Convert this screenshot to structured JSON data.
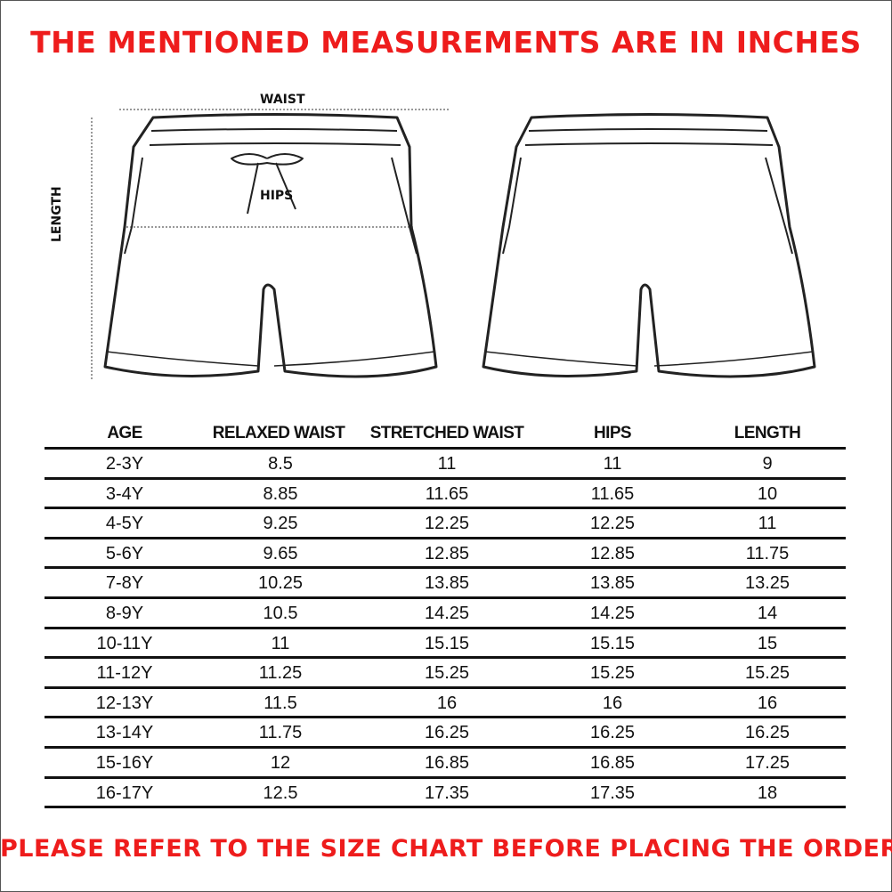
{
  "header": {
    "title": "THE MENTIONED MEASUREMENTS ARE IN INCHES"
  },
  "diagram": {
    "labels": {
      "waist": "WAIST",
      "hips": "HIPS",
      "length": "LENGTH"
    }
  },
  "table": {
    "columns": [
      "AGE",
      "RELAXED WAIST",
      "STRETCHED WAIST",
      "HIPS",
      "LENGTH"
    ],
    "rows": [
      [
        "2-3Y",
        "8.5",
        "11",
        "11",
        "9"
      ],
      [
        "3-4Y",
        "8.85",
        "11.65",
        "11.65",
        "10"
      ],
      [
        "4-5Y",
        "9.25",
        "12.25",
        "12.25",
        "11"
      ],
      [
        "5-6Y",
        "9.65",
        "12.85",
        "12.85",
        "11.75"
      ],
      [
        "7-8Y",
        "10.25",
        "13.85",
        "13.85",
        "13.25"
      ],
      [
        "8-9Y",
        "10.5",
        "14.25",
        "14.25",
        "14"
      ],
      [
        "10-11Y",
        "11",
        "15.15",
        "15.15",
        "15"
      ],
      [
        "11-12Y",
        "11.25",
        "15.25",
        "15.25",
        "15.25"
      ],
      [
        "12-13Y",
        "11.5",
        "16",
        "16",
        "16"
      ],
      [
        "13-14Y",
        "11.75",
        "16.25",
        "16.25",
        "16.25"
      ],
      [
        "15-16Y",
        "12",
        "16.85",
        "16.85",
        "17.25"
      ],
      [
        "16-17Y",
        "12.5",
        "17.35",
        "17.35",
        "18"
      ]
    ]
  },
  "footer": {
    "note": "PLEASE REFER TO THE SIZE CHART BEFORE PLACING THE ORDER."
  },
  "colors": {
    "accent": "#ee1c1c",
    "text": "#111111"
  }
}
